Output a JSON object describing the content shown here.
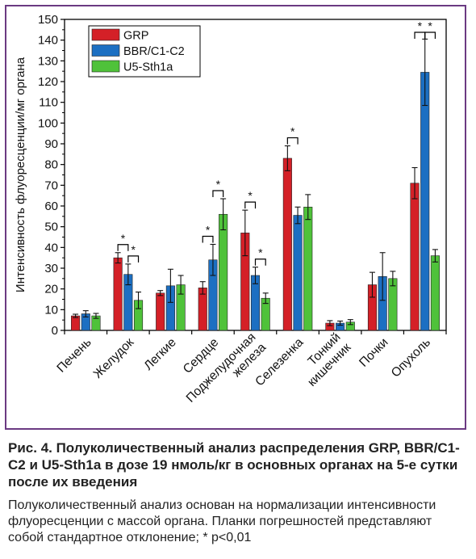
{
  "chart_data": {
    "type": "bar",
    "ylabel": "Интенсивность флуоресценции/мг органа",
    "ylim": [
      0,
      150
    ],
    "yticks": [
      0,
      10,
      20,
      30,
      40,
      50,
      60,
      70,
      80,
      90,
      100,
      110,
      120,
      130,
      140,
      150
    ],
    "categories": [
      "Печень",
      "Желудок",
      "Легкие",
      "Сердце",
      "Поджелудочная железа",
      "Селезенка",
      "Тонкий кишечник",
      "Почки",
      "Опухоль"
    ],
    "category_labels": [
      [
        "Печень"
      ],
      [
        "Желудок"
      ],
      [
        "Легкие"
      ],
      [
        "Сердце"
      ],
      [
        "Поджелудочная",
        "железа"
      ],
      [
        "Селезенка"
      ],
      [
        "Тонкий",
        "кишечник"
      ],
      [
        "Почки"
      ],
      [
        "Опухоль"
      ]
    ],
    "series": [
      {
        "name": "GRP",
        "color": "#d42027",
        "values": [
          7,
          35,
          18,
          20.5,
          47,
          83,
          3.5,
          22,
          71
        ],
        "errors": [
          0.8,
          2.5,
          1.2,
          3,
          11,
          6,
          1.2,
          6,
          7.5
        ]
      },
      {
        "name": "BBR/C1-C2",
        "color": "#1c6fc2",
        "values": [
          8,
          27,
          21.5,
          34,
          26.5,
          55.5,
          3.5,
          26,
          124.5
        ],
        "errors": [
          1.5,
          5,
          8,
          7.5,
          4,
          4,
          1,
          11.5,
          16
        ]
      },
      {
        "name": "U5-Sth1a",
        "color": "#4fc23a",
        "values": [
          7,
          14.5,
          22,
          56,
          15.5,
          59.5,
          4,
          25,
          36
        ],
        "errors": [
          1.2,
          4,
          4.5,
          7.5,
          2.5,
          6,
          1.2,
          3.5,
          3
        ]
      }
    ],
    "significance": [
      {
        "category": 1,
        "pair": [
          0,
          1
        ],
        "label": "*"
      },
      {
        "category": 1,
        "pair": [
          1,
          2
        ],
        "label": "*"
      },
      {
        "category": 3,
        "pair": [
          0,
          1
        ],
        "label": "*"
      },
      {
        "category": 3,
        "pair": [
          1,
          2
        ],
        "label": "*"
      },
      {
        "category": 4,
        "pair": [
          0,
          1
        ],
        "label": "*"
      },
      {
        "category": 4,
        "pair": [
          1,
          2
        ],
        "label": "*"
      },
      {
        "category": 5,
        "pair": [
          0,
          1
        ],
        "label": "*"
      },
      {
        "category": 8,
        "pair": [
          0,
          1
        ],
        "label": "*"
      },
      {
        "category": 8,
        "pair": [
          1,
          2
        ],
        "label": "*"
      }
    ],
    "legend_position": "top-left",
    "grid": false
  },
  "caption": {
    "title": "Рис. 4. Полуколичественный анализ распределения GRP, BBR/C1-C2 и U5-Sth1a в дозе 19 нмоль/кг в основных органах на 5-е сутки после их введения",
    "body": "Полуколичественный анализ основан на нормализации интенсивности флуоресценции с массой органа. Планки погрешностей представляют собой стандартное отклонение; * p<0,01"
  }
}
